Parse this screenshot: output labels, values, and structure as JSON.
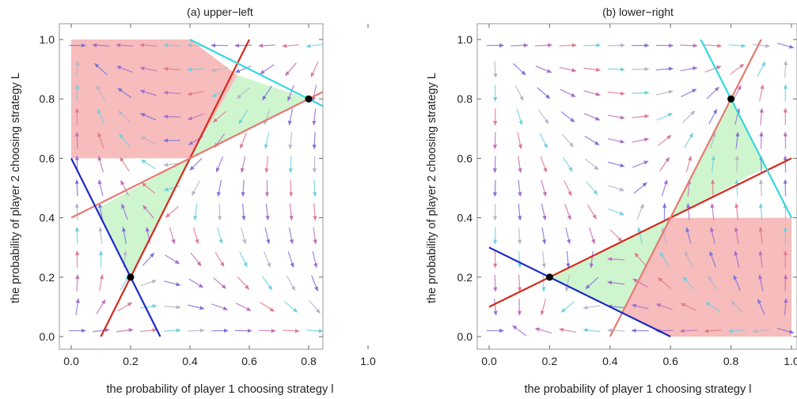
{
  "chart_data": [
    {
      "type": "line",
      "title": "(a) upper−left",
      "xlabel": "the probability of player 1 choosing strategy l",
      "ylabel": "the probability of player 2 choosing strategy L",
      "xlim": [
        0.0,
        1.0
      ],
      "ylim": [
        0.0,
        1.0
      ],
      "xticks": [
        "0.0",
        "0.2",
        "0.4",
        "0.6",
        "0.8",
        "1.0"
      ],
      "yticks": [
        "0.0",
        "0.2",
        "0.4",
        "0.6",
        "0.8",
        "1.0"
      ],
      "grid": false,
      "background": "stream plot (vector field arrows)",
      "regions": [
        {
          "color": "#f4a6a6",
          "points": [
            [
              0,
              1
            ],
            [
              0.4,
              1
            ],
            [
              0.56,
              0.88
            ],
            [
              0.4,
              0.6
            ],
            [
              0.0,
              0.6
            ]
          ]
        },
        {
          "color": "#bff2bf",
          "points": [
            [
              0.4,
              0.6
            ],
            [
              0.56,
              0.88
            ],
            [
              0.8,
              0.8
            ]
          ]
        },
        {
          "color": "#bff2bf",
          "points": [
            [
              0.4,
              0.6
            ],
            [
              0.2,
              0.2
            ],
            [
              0.085,
              0.43
            ]
          ]
        }
      ],
      "series": [
        {
          "color": "#d42a1f",
          "points": [
            [
              0.1,
              0.0
            ],
            [
              0.6,
              1.0
            ]
          ]
        },
        {
          "color": "#e57a72",
          "points": [
            [
              0.0,
              0.4
            ],
            [
              1.0,
              0.9
            ]
          ]
        },
        {
          "color": "#1c28c8",
          "points": [
            [
              0.0,
              0.6
            ],
            [
              0.3,
              0.0
            ]
          ]
        },
        {
          "color": "#34d8dd",
          "points": [
            [
              0.4,
              1.0
            ],
            [
              1.0,
              0.7
            ]
          ]
        }
      ],
      "equilibria": [
        [
          0.2,
          0.2
        ],
        [
          0.8,
          0.8
        ]
      ]
    },
    {
      "type": "line",
      "title": "(b) lower−right",
      "xlabel": "the probability of player 1 choosing strategy l",
      "ylabel": "the probability of player 2 choosing strategy L",
      "xlim": [
        0.0,
        1.0
      ],
      "ylim": [
        0.0,
        1.0
      ],
      "xticks": [
        "0.0",
        "0.2",
        "0.4",
        "0.6",
        "0.8",
        "1.0"
      ],
      "yticks": [
        "0.0",
        "0.2",
        "0.4",
        "0.6",
        "0.8",
        "1.0"
      ],
      "grid": false,
      "background": "stream plot (vector field arrows)",
      "regions": [
        {
          "color": "#f4a6a6",
          "points": [
            [
              1,
              0
            ],
            [
              0.6,
              0
            ],
            [
              0.44,
              0.08
            ],
            [
              0.6,
              0.4
            ],
            [
              1.0,
              0.4
            ]
          ]
        },
        {
          "color": "#bff2bf",
          "points": [
            [
              0.6,
              0.4
            ],
            [
              0.44,
              0.08
            ],
            [
              0.2,
              0.2
            ]
          ]
        },
        {
          "color": "#bff2bf",
          "points": [
            [
              0.6,
              0.4
            ],
            [
              0.8,
              0.8
            ],
            [
              0.915,
              0.57
            ]
          ]
        }
      ],
      "series": [
        {
          "color": "#d42a1f",
          "points": [
            [
              0.0,
              0.1
            ],
            [
              1.0,
              0.6
            ]
          ]
        },
        {
          "color": "#e57a72",
          "points": [
            [
              0.4,
              0.0
            ],
            [
              0.9,
              1.0
            ]
          ]
        },
        {
          "color": "#1c28c8",
          "points": [
            [
              0.0,
              0.3
            ],
            [
              0.6,
              0.0
            ]
          ]
        },
        {
          "color": "#34d8dd",
          "points": [
            [
              0.7,
              1.0
            ],
            [
              1.0,
              0.4
            ]
          ]
        }
      ],
      "equilibria": [
        [
          0.2,
          0.2
        ],
        [
          0.8,
          0.8
        ]
      ]
    }
  ]
}
